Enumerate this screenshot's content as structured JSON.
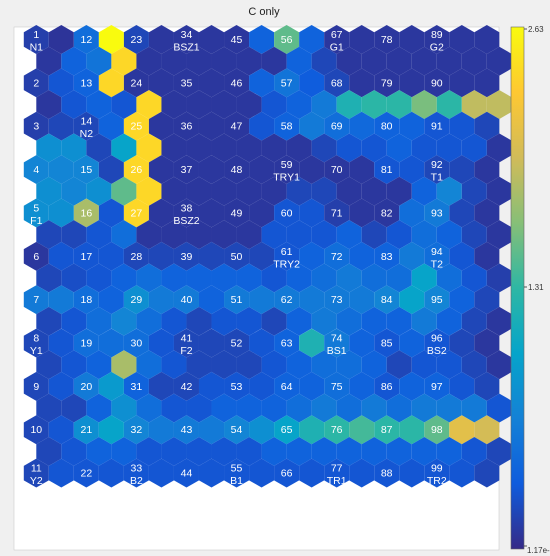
{
  "chart_data": {
    "type": "heatmap",
    "title": "C  only",
    "grid": {
      "cols": 19,
      "rows": 21
    },
    "colorbar": {
      "colormap": "parula",
      "range": [
        0.0117,
        2.63
      ],
      "tick_labels": [
        "2.63",
        "1.31",
        "1.17e-"
      ]
    },
    "neurons": [
      {
        "id": "1",
        "tag": "N1"
      },
      {
        "id": "2"
      },
      {
        "id": "3"
      },
      {
        "id": "4"
      },
      {
        "id": "5",
        "tag": "F1"
      },
      {
        "id": "6"
      },
      {
        "id": "7"
      },
      {
        "id": "8",
        "tag": "Y1"
      },
      {
        "id": "9"
      },
      {
        "id": "10"
      },
      {
        "id": "11",
        "tag": "Y2"
      },
      {
        "id": "12"
      },
      {
        "id": "13"
      },
      {
        "id": "14",
        "tag": "N2"
      },
      {
        "id": "15"
      },
      {
        "id": "16"
      },
      {
        "id": "17"
      },
      {
        "id": "18"
      },
      {
        "id": "19"
      },
      {
        "id": "20"
      },
      {
        "id": "21"
      },
      {
        "id": "22"
      },
      {
        "id": "23"
      },
      {
        "id": "24"
      },
      {
        "id": "25"
      },
      {
        "id": "26"
      },
      {
        "id": "27"
      },
      {
        "id": "28"
      },
      {
        "id": "29"
      },
      {
        "id": "30"
      },
      {
        "id": "31"
      },
      {
        "id": "32"
      },
      {
        "id": "33",
        "tag": "B2"
      },
      {
        "id": "34",
        "tag": "BSZ1"
      },
      {
        "id": "35"
      },
      {
        "id": "36"
      },
      {
        "id": "37"
      },
      {
        "id": "38",
        "tag": "BSZ2"
      },
      {
        "id": "39"
      },
      {
        "id": "40"
      },
      {
        "id": "41",
        "tag": "F2"
      },
      {
        "id": "42"
      },
      {
        "id": "43"
      },
      {
        "id": "44"
      },
      {
        "id": "45"
      },
      {
        "id": "46"
      },
      {
        "id": "47"
      },
      {
        "id": "48"
      },
      {
        "id": "49"
      },
      {
        "id": "50"
      },
      {
        "id": "51"
      },
      {
        "id": "52"
      },
      {
        "id": "53"
      },
      {
        "id": "54"
      },
      {
        "id": "55",
        "tag": "B1"
      },
      {
        "id": "56"
      },
      {
        "id": "57"
      },
      {
        "id": "58"
      },
      {
        "id": "59",
        "tag": "TRY1"
      },
      {
        "id": "60"
      },
      {
        "id": "61",
        "tag": "TRY2"
      },
      {
        "id": "62"
      },
      {
        "id": "63"
      },
      {
        "id": "64"
      },
      {
        "id": "65"
      },
      {
        "id": "66"
      },
      {
        "id": "67",
        "tag": "G1"
      },
      {
        "id": "68"
      },
      {
        "id": "69"
      },
      {
        "id": "70"
      },
      {
        "id": "71"
      },
      {
        "id": "72"
      },
      {
        "id": "73"
      },
      {
        "id": "74",
        "tag": "BS1"
      },
      {
        "id": "75"
      },
      {
        "id": "76"
      },
      {
        "id": "77",
        "tag": "TR1"
      },
      {
        "id": "78"
      },
      {
        "id": "79"
      },
      {
        "id": "80"
      },
      {
        "id": "81"
      },
      {
        "id": "82"
      },
      {
        "id": "83"
      },
      {
        "id": "84"
      },
      {
        "id": "85"
      },
      {
        "id": "86"
      },
      {
        "id": "87"
      },
      {
        "id": "88"
      },
      {
        "id": "89",
        "tag": "G2"
      },
      {
        "id": "90"
      },
      {
        "id": "91"
      },
      {
        "id": "92",
        "tag": "T1"
      },
      {
        "id": "93"
      },
      {
        "id": "94",
        "tag": "T2"
      },
      {
        "id": "95"
      },
      {
        "id": "96",
        "tag": "BS2"
      },
      {
        "id": "97"
      },
      {
        "id": "98"
      },
      {
        "id": "99",
        "tag": "TR2"
      }
    ],
    "cells": [
      [
        0.15,
        0.08,
        0.5,
        2.63,
        0.2,
        0.1,
        0.1,
        0.1,
        0.1,
        0.4,
        1.5,
        0.4,
        0.1,
        0.1,
        0.1,
        0.1,
        0.1,
        0.1,
        0.1
      ],
      [
        0.1,
        0.4,
        0.55,
        2.4,
        0.1,
        0.1,
        0.1,
        0.1,
        0.1,
        0.1,
        0.4,
        0.2,
        0.1,
        0.1,
        0.1,
        0.1,
        0.1,
        0.1,
        0.1
      ],
      [
        0.15,
        0.3,
        0.4,
        2.4,
        0.1,
        0.1,
        0.1,
        0.1,
        0.1,
        0.4,
        0.55,
        0.35,
        0.2,
        0.1,
        0.1,
        0.1,
        0.1,
        0.1,
        0.1
      ],
      [
        0.1,
        0.3,
        0.4,
        0.3,
        2.4,
        0.1,
        0.1,
        0.1,
        0.1,
        0.3,
        0.4,
        0.6,
        1.2,
        1.3,
        1.3,
        1.6,
        1.3,
        1.9,
        1.9
      ],
      [
        0.15,
        0.2,
        0.2,
        0.4,
        2.4,
        0.1,
        0.1,
        0.1,
        0.1,
        0.3,
        0.4,
        0.6,
        0.5,
        0.45,
        0.4,
        0.4,
        0.3,
        0.3,
        0.2
      ],
      [
        0.8,
        0.8,
        0.2,
        1.0,
        2.4,
        0.1,
        0.1,
        0.1,
        0.1,
        0.1,
        0.1,
        0.2,
        0.3,
        0.3,
        0.4,
        0.3,
        0.3,
        0.3,
        0.1
      ],
      [
        0.7,
        0.7,
        0.7,
        0.2,
        2.4,
        0.1,
        0.1,
        0.1,
        0.1,
        0.1,
        0.1,
        0.1,
        0.1,
        0.1,
        0.3,
        0.3,
        0.2,
        0.2,
        0.1
      ],
      [
        0.8,
        0.7,
        0.8,
        1.5,
        2.4,
        0.1,
        0.1,
        0.1,
        0.1,
        0.1,
        0.2,
        0.2,
        0.1,
        0.1,
        0.1,
        0.4,
        0.7,
        0.2,
        0.1
      ],
      [
        0.8,
        0.8,
        1.8,
        0.3,
        2.4,
        0.1,
        0.1,
        0.1,
        0.1,
        0.1,
        0.3,
        0.3,
        0.15,
        0.1,
        0.1,
        0.5,
        0.6,
        0.2,
        0.1
      ],
      [
        0.2,
        0.2,
        0.3,
        0.5,
        0.1,
        0.1,
        0.1,
        0.1,
        0.1,
        0.3,
        0.3,
        0.3,
        0.4,
        0.2,
        0.3,
        0.5,
        0.4,
        0.2,
        0.1
      ],
      [
        0.1,
        0.3,
        0.3,
        0.3,
        0.2,
        0.2,
        0.2,
        0.2,
        0.2,
        0.2,
        0.3,
        0.4,
        0.5,
        0.4,
        0.4,
        0.6,
        0.5,
        0.3,
        0.1
      ],
      [
        0.2,
        0.25,
        0.3,
        0.4,
        0.5,
        0.4,
        0.4,
        0.4,
        0.4,
        0.3,
        0.4,
        0.5,
        0.6,
        0.5,
        0.5,
        1.0,
        0.5,
        0.3,
        0.15
      ],
      [
        0.6,
        0.6,
        0.5,
        0.4,
        0.8,
        0.6,
        0.6,
        0.4,
        0.6,
        0.6,
        0.6,
        0.6,
        0.6,
        0.6,
        0.7,
        1.0,
        0.7,
        0.4,
        0.2
      ],
      [
        0.2,
        0.3,
        0.5,
        0.7,
        0.5,
        0.3,
        0.2,
        0.3,
        0.3,
        0.2,
        0.4,
        0.6,
        0.5,
        0.4,
        0.4,
        0.6,
        0.4,
        0.2,
        0.1
      ],
      [
        0.2,
        0.3,
        0.5,
        0.5,
        0.5,
        0.3,
        0.2,
        0.2,
        0.2,
        0.3,
        0.4,
        1.2,
        0.6,
        0.4,
        0.3,
        0.4,
        0.3,
        0.2,
        0.1
      ],
      [
        0.2,
        0.3,
        0.4,
        1.8,
        0.5,
        0.3,
        0.2,
        0.2,
        0.2,
        0.3,
        0.4,
        0.5,
        0.5,
        0.4,
        0.2,
        0.3,
        0.3,
        0.2,
        0.1
      ],
      [
        0.2,
        0.3,
        0.6,
        0.9,
        0.4,
        0.2,
        0.2,
        0.3,
        0.3,
        0.3,
        0.4,
        0.4,
        0.5,
        0.4,
        0.3,
        0.4,
        0.4,
        0.3,
        0.2
      ],
      [
        0.2,
        0.2,
        0.4,
        0.8,
        0.5,
        0.3,
        0.3,
        0.4,
        0.4,
        0.4,
        0.5,
        0.6,
        0.5,
        0.6,
        0.5,
        0.6,
        0.6,
        0.6,
        0.3
      ],
      [
        0.2,
        0.3,
        0.8,
        1.0,
        0.7,
        0.6,
        0.6,
        0.6,
        0.7,
        0.8,
        1.0,
        1.2,
        1.3,
        1.4,
        1.3,
        1.3,
        1.5,
        2.1,
        2.0
      ],
      [
        0.2,
        0.3,
        0.4,
        0.4,
        0.3,
        0.3,
        0.3,
        0.3,
        0.3,
        0.4,
        0.4,
        0.4,
        0.4,
        0.4,
        0.4,
        0.4,
        0.4,
        0.3,
        0.2
      ],
      [
        0.2,
        0.3,
        0.3,
        0.3,
        0.3,
        0.3,
        0.3,
        0.3,
        0.3,
        0.3,
        0.3,
        0.3,
        0.3,
        0.3,
        0.3,
        0.3,
        0.3,
        0.3,
        0.2
      ]
    ]
  }
}
